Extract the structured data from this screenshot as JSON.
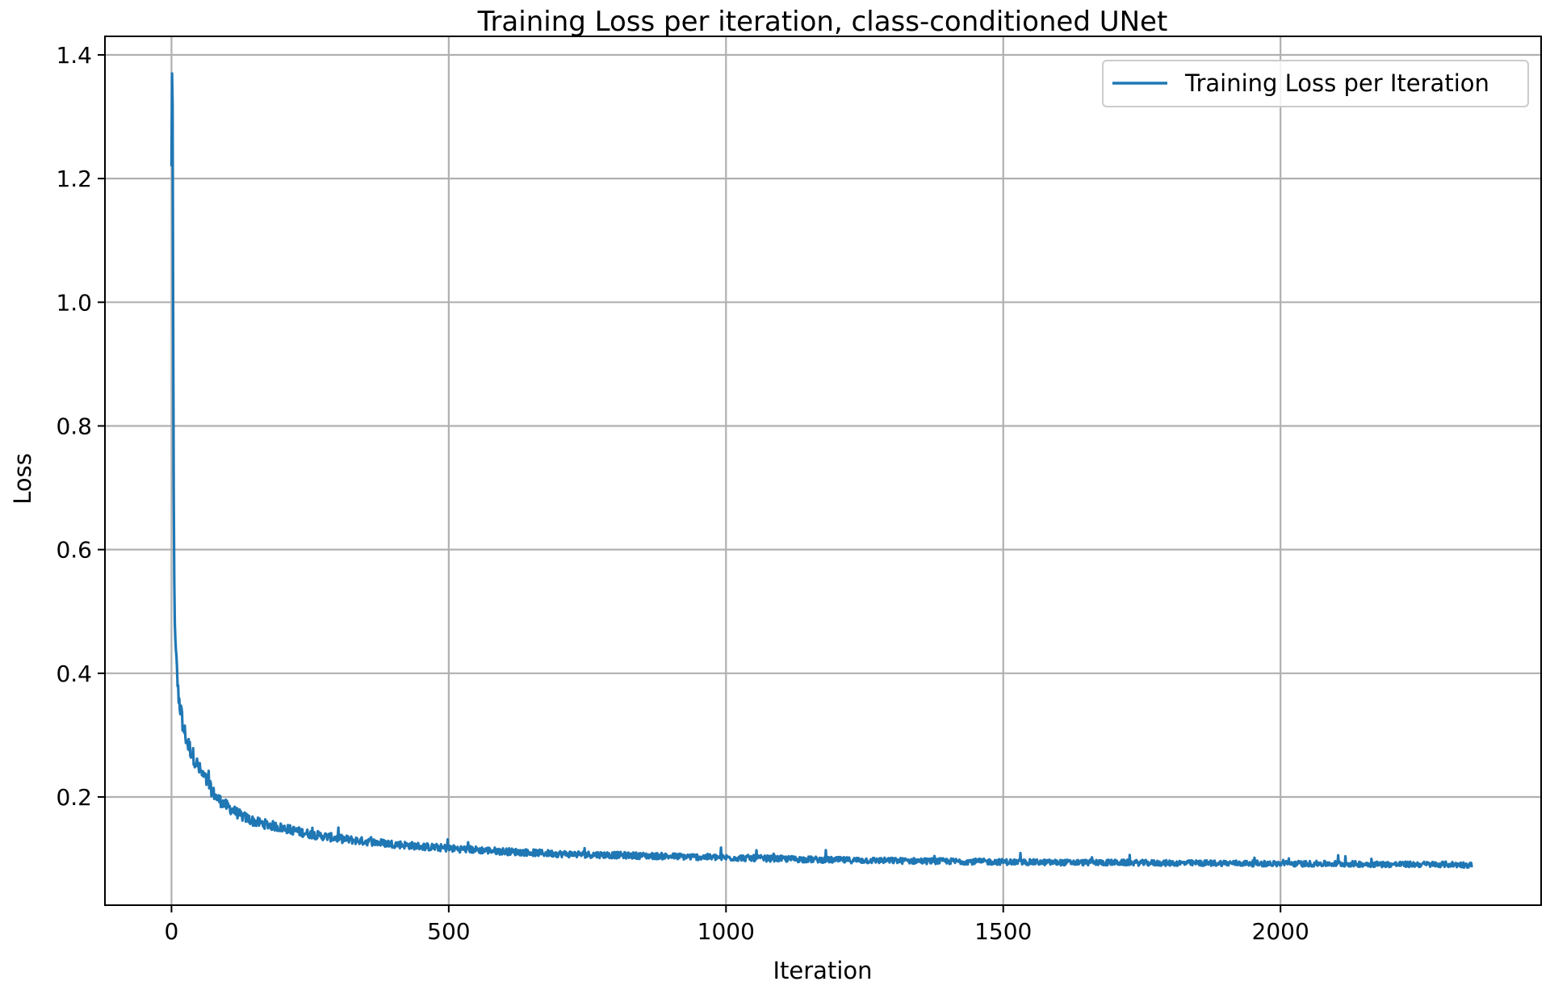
{
  "chart_data": {
    "type": "line",
    "title": "Training Loss per iteration, class-conditioned UNet",
    "xlabel": "Iteration",
    "ylabel": "Loss",
    "xlim": [
      -120,
      2470
    ],
    "ylim": [
      0.025,
      1.43
    ],
    "xticks": [
      0,
      500,
      1000,
      1500,
      2000
    ],
    "xtick_labels": [
      "0",
      "500",
      "1000",
      "1500",
      "2000"
    ],
    "yticks": [
      0.2,
      0.4,
      0.6,
      0.8,
      1.0,
      1.2,
      1.4
    ],
    "ytick_labels": [
      "0.2",
      "0.4",
      "0.6",
      "0.8",
      "1.0",
      "1.2",
      "1.4"
    ],
    "grid": true,
    "legend_position": "top-right",
    "series": [
      {
        "name": "Training Loss per Iteration",
        "color": "#1f77b4",
        "x": [
          0,
          1,
          2,
          3,
          4,
          5,
          6,
          8,
          10,
          12,
          15,
          20,
          25,
          30,
          40,
          50,
          60,
          70,
          80,
          100,
          125,
          150,
          175,
          200,
          250,
          300,
          350,
          400,
          450,
          500,
          600,
          700,
          800,
          900,
          1000,
          1100,
          1200,
          1300,
          1400,
          1500,
          1600,
          1700,
          1800,
          1900,
          2000,
          2100,
          2200,
          2300,
          2345
        ],
        "y": [
          1.22,
          1.37,
          1.32,
          0.98,
          0.7,
          0.55,
          0.48,
          0.43,
          0.4,
          0.37,
          0.35,
          0.32,
          0.3,
          0.285,
          0.265,
          0.245,
          0.23,
          0.215,
          0.2,
          0.185,
          0.17,
          0.16,
          0.155,
          0.15,
          0.14,
          0.133,
          0.128,
          0.124,
          0.12,
          0.117,
          0.112,
          0.108,
          0.106,
          0.104,
          0.102,
          0.1,
          0.098,
          0.097,
          0.096,
          0.095,
          0.094,
          0.094,
          0.093,
          0.093,
          0.092,
          0.092,
          0.091,
          0.091,
          0.09
        ]
      }
    ]
  }
}
